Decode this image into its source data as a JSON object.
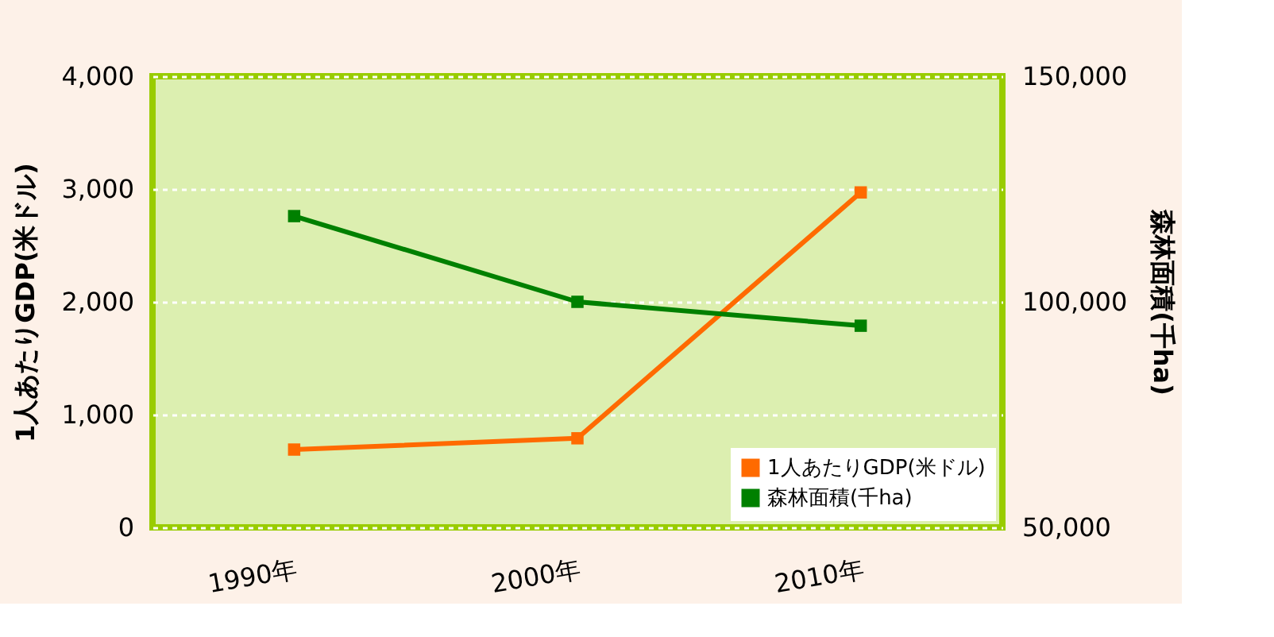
{
  "chart_data": {
    "type": "line",
    "categories": [
      "1990年",
      "2000年",
      "2010年"
    ],
    "series": [
      {
        "name": "1人あたりGDP(米ドル)",
        "color": "#ff6a00",
        "values": [
          690,
          790,
          2970
        ]
      },
      {
        "name": "森林面積(千ha)",
        "color": "#008000",
        "values": [
          119000,
          100000,
          94700
        ],
        "axis": "y2"
      }
    ],
    "ylabel": "1人あたりGDP(米ドル)",
    "y2label": "森林面積(千ha)",
    "ylim": [
      0,
      4000
    ],
    "yticks": [
      0,
      {
        "value": 1000,
        "label": "1,000"
      },
      {
        "value": 2000,
        "label": "2,000"
      },
      {
        "value": 3000,
        "label": "3,000"
      },
      {
        "value": 4000,
        "label": "4,000"
      }
    ],
    "y2lim": [
      50000,
      150000
    ],
    "y2ticks": [
      {
        "value": 50000,
        "label": "50,000"
      },
      {
        "value": 100000,
        "label": "100,000"
      },
      {
        "value": 150000,
        "label": "150,000"
      }
    ],
    "grid": "y",
    "legend": "bottom right",
    "marker": "square",
    "line_style": "solid"
  }
}
